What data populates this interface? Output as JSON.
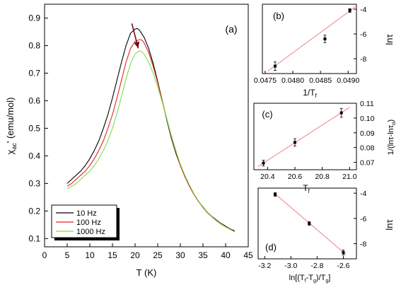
{
  "chart_data": [
    {
      "panel": "(a)",
      "type": "line",
      "xlabel": "T (K)",
      "ylabel": "χac' (emu/mol)",
      "ylabel_main": "χ",
      "ylabel_sub": "ac",
      "ylabel_rest": "' (emu/mol)",
      "xlim": [
        0,
        45
      ],
      "ylim": [
        0.07,
        0.95
      ],
      "xticks": [
        0,
        5,
        10,
        15,
        20,
        25,
        30,
        35,
        40,
        45
      ],
      "yticks": [
        0.1,
        0.2,
        0.3,
        0.4,
        0.5,
        0.6,
        0.7,
        0.8,
        0.9
      ],
      "legend_position": "bottom-left",
      "arrow": {
        "from": [
          19.3,
          0.88
        ],
        "to": [
          20.7,
          0.79
        ],
        "color": "#7a0a0a"
      },
      "series": [
        {
          "name": "10 Hz",
          "color": "#000000",
          "x": [
            5,
            6,
            7,
            8,
            9,
            10,
            11,
            12,
            13,
            14,
            15,
            16,
            17,
            18,
            19,
            20,
            20.5,
            21,
            22,
            23,
            24,
            25,
            26,
            27,
            28,
            29,
            30,
            31,
            32,
            33,
            34,
            35,
            36,
            37,
            38,
            39,
            40,
            41,
            42
          ],
          "y": [
            0.3,
            0.315,
            0.33,
            0.345,
            0.365,
            0.39,
            0.42,
            0.455,
            0.5,
            0.55,
            0.61,
            0.675,
            0.74,
            0.8,
            0.845,
            0.86,
            0.862,
            0.855,
            0.83,
            0.79,
            0.735,
            0.67,
            0.6,
            0.53,
            0.465,
            0.41,
            0.365,
            0.325,
            0.29,
            0.26,
            0.235,
            0.215,
            0.195,
            0.18,
            0.167,
            0.155,
            0.145,
            0.135,
            0.128
          ]
        },
        {
          "name": "100 Hz",
          "color": "#e3242b",
          "x": [
            5,
            6,
            7,
            8,
            9,
            10,
            11,
            12,
            13,
            14,
            15,
            16,
            17,
            18,
            19,
            20,
            21,
            21.5,
            22,
            23,
            24,
            25,
            26,
            27,
            28,
            29,
            30,
            31,
            32,
            33,
            34,
            35,
            36,
            37,
            38,
            39,
            40,
            41,
            42
          ],
          "y": [
            0.29,
            0.3,
            0.315,
            0.33,
            0.345,
            0.365,
            0.39,
            0.42,
            0.455,
            0.5,
            0.55,
            0.61,
            0.675,
            0.74,
            0.79,
            0.815,
            0.822,
            0.82,
            0.81,
            0.775,
            0.725,
            0.665,
            0.6,
            0.535,
            0.47,
            0.415,
            0.365,
            0.325,
            0.29,
            0.26,
            0.235,
            0.212,
            0.193,
            0.178,
            0.164,
            0.152,
            0.142,
            0.133,
            0.126
          ]
        },
        {
          "name": "1000 Hz",
          "color": "#7ee04a",
          "x": [
            5,
            6,
            7,
            8,
            9,
            10,
            11,
            12,
            13,
            14,
            15,
            16,
            17,
            18,
            19,
            20,
            21,
            22,
            23,
            24,
            25,
            26,
            27,
            28,
            29,
            30,
            31,
            32,
            33,
            34,
            35,
            36,
            37,
            38,
            39,
            40,
            41,
            42
          ],
          "y": [
            0.28,
            0.29,
            0.3,
            0.315,
            0.33,
            0.345,
            0.365,
            0.39,
            0.42,
            0.455,
            0.5,
            0.555,
            0.615,
            0.68,
            0.735,
            0.77,
            0.782,
            0.77,
            0.74,
            0.7,
            0.65,
            0.595,
            0.535,
            0.475,
            0.42,
            0.37,
            0.33,
            0.295,
            0.263,
            0.237,
            0.214,
            0.195,
            0.179,
            0.165,
            0.153,
            0.142,
            0.133,
            0.124
          ]
        }
      ]
    },
    {
      "panel": "(b)",
      "type": "scatter",
      "xlabel": "1/Tf",
      "xlabel_main": "1/T",
      "xlabel_sub": "f",
      "ylabel": "lnτ",
      "xlim": [
        0.04745,
        0.04915
      ],
      "ylim": [
        -9.2,
        -3.6
      ],
      "xticks": [
        0.0475,
        0.048,
        0.0485,
        0.049
      ],
      "xtick_labels": [
        "0.0475",
        "0.0480",
        "0.0485",
        "0.0490"
      ],
      "yticks": [
        -4,
        -6,
        -8
      ],
      "yaxis_side": "right",
      "points": [
        {
          "x": 0.04768,
          "y": -8.6,
          "err": 0.35
        },
        {
          "x": 0.04858,
          "y": -6.4,
          "err": 0.3
        },
        {
          "x": 0.04903,
          "y": -4.1,
          "err": 0.15
        }
      ],
      "fit": {
        "x": [
          0.04755,
          0.04915
        ],
        "y": [
          -9.0,
          -3.75
        ],
        "color": "#f08080"
      }
    },
    {
      "panel": "(c)",
      "type": "scatter",
      "xlabel": "Tf",
      "xlabel_main": "T",
      "xlabel_sub": "f",
      "ylabel": "1/(lnτ-lnτo)",
      "xlim": [
        20.3,
        21.05
      ],
      "ylim": [
        0.065,
        0.11
      ],
      "xticks": [
        20.4,
        20.6,
        20.8,
        21.0
      ],
      "xtick_labels": [
        "20.4",
        "20.6",
        "20.8",
        "21.0"
      ],
      "yticks": [
        0.07,
        0.08,
        0.09,
        0.1,
        0.11
      ],
      "ytick_labels": [
        "0.07",
        "0.08",
        "0.09",
        "0.10",
        "0.11"
      ],
      "yaxis_side": "right",
      "points": [
        {
          "x": 20.37,
          "y": 0.0695,
          "err": 0.002
        },
        {
          "x": 20.6,
          "y": 0.0835,
          "err": 0.0025
        },
        {
          "x": 20.94,
          "y": 0.1035,
          "err": 0.003
        }
      ],
      "fit": {
        "x": [
          20.33,
          21.0
        ],
        "y": [
          0.0672,
          0.1072
        ],
        "color": "#f08080"
      }
    },
    {
      "panel": "(d)",
      "type": "scatter",
      "xlabel": "ln[(Tf-Tg)/Tg]",
      "ylabel": "lnτ",
      "xlim": [
        -3.25,
        -2.5
      ],
      "ylim": [
        -9.2,
        -3.6
      ],
      "xticks": [
        -3.2,
        -3.0,
        -2.8,
        -2.6
      ],
      "xtick_labels": [
        "-3.2",
        "-3.0",
        "-2.8",
        "-2.6"
      ],
      "yticks": [
        -4,
        -6,
        -8
      ],
      "yaxis_side": "right",
      "points": [
        {
          "x": -3.12,
          "y": -4.1,
          "err": 0.15
        },
        {
          "x": -2.86,
          "y": -6.4,
          "err": 0.15
        },
        {
          "x": -2.6,
          "y": -8.7,
          "err": 0.2
        }
      ],
      "fit": {
        "x": [
          -3.13,
          -2.58
        ],
        "y": [
          -3.98,
          -8.85
        ],
        "color": "#f08080"
      }
    }
  ]
}
